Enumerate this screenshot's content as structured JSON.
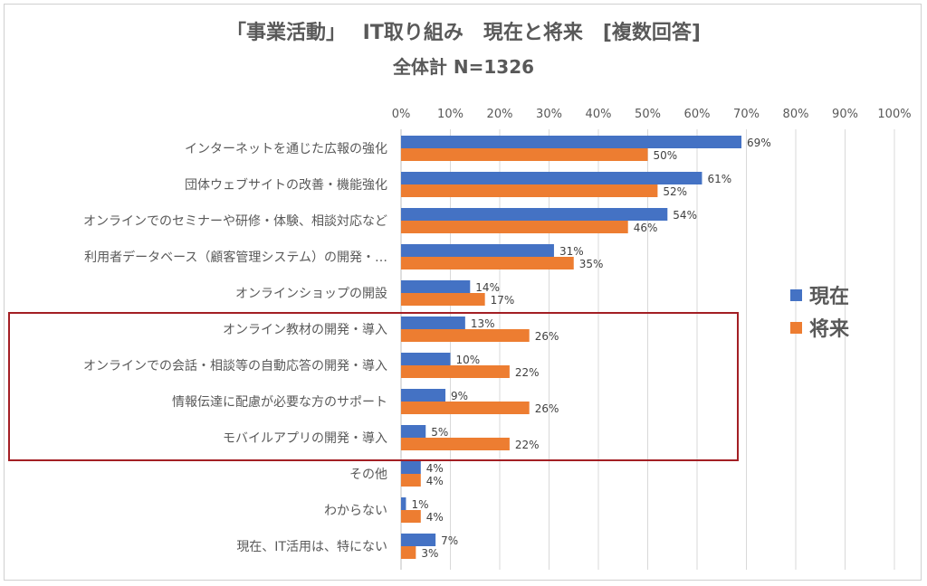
{
  "chart_data": {
    "type": "bar",
    "orientation": "horizontal",
    "title": "「事業活動」　 IT取り組み　現在と将来　[複数回答]",
    "subtitle": "全体計 N=1326",
    "categories": [
      "インターネットを通じた広報の強化",
      "団体ウェブサイトの改善・機能強化",
      "オンラインでのセミナーや研修・体験、相談対応など",
      "利用者データベース（顧客管理システム）の開発・…",
      "オンラインショップの開設",
      "オンライン教材の開発・導入",
      "オンラインでの会話・相談等の自動応答の開発・導入",
      "情報伝達に配慮が必要な方のサポート",
      "モバイルアプリの開発・導入",
      "その他",
      "わからない",
      "現在、IT活用は、特にない"
    ],
    "series": [
      {
        "name": "現在",
        "color": "#4472c4",
        "values": [
          69,
          61,
          54,
          31,
          14,
          13,
          10,
          9,
          5,
          4,
          1,
          7
        ]
      },
      {
        "name": "将来",
        "color": "#ed7d31",
        "values": [
          50,
          52,
          46,
          35,
          17,
          26,
          22,
          26,
          22,
          4,
          4,
          3
        ]
      }
    ],
    "xlim": [
      0,
      100
    ],
    "xticks": [
      "0%",
      "10%",
      "20%",
      "30%",
      "40%",
      "50%",
      "60%",
      "70%",
      "80%",
      "90%",
      "100%"
    ],
    "value_suffix": "%",
    "grid": true,
    "legend_position": "right",
    "highlighted_categories": [
      5,
      6,
      7,
      8
    ]
  }
}
